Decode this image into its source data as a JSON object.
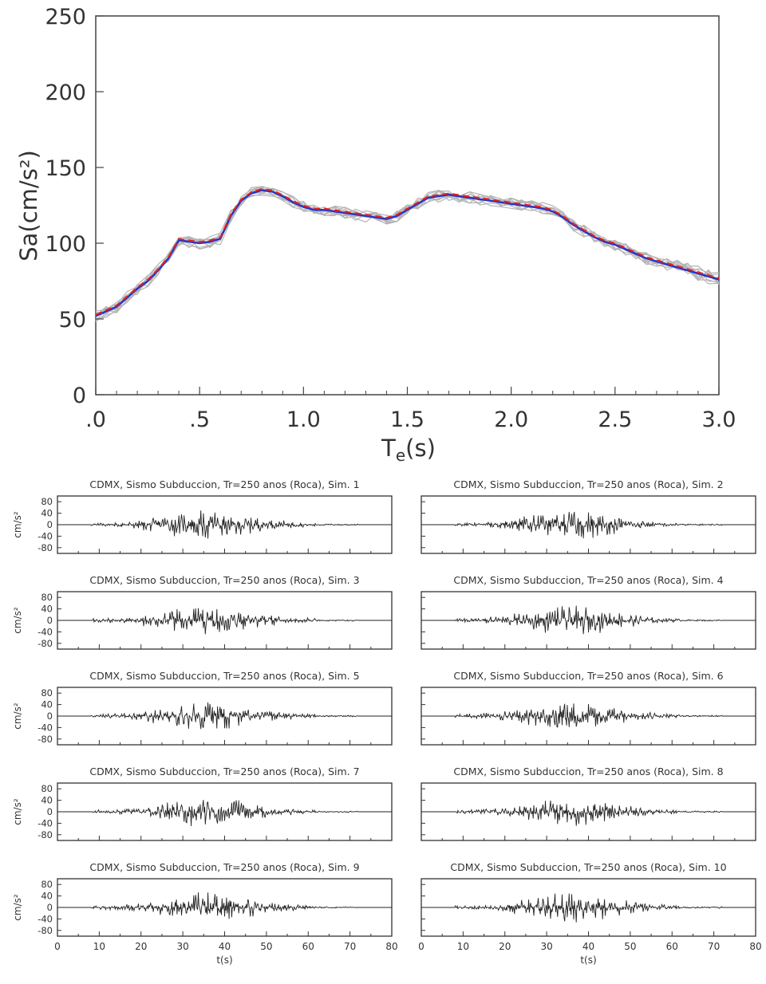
{
  "spectrum": {
    "chart_data": {
      "type": "line",
      "xlabel_main": "T",
      "xlabel_sub": "e",
      "xlabel_tail": "(s)",
      "ylabel": "Sa(cm/s²)",
      "xlim": [
        0,
        3
      ],
      "ylim": [
        0,
        250
      ],
      "x_ticks": [
        0,
        0.5,
        1.0,
        1.5,
        2.0,
        2.5,
        3.0
      ],
      "x_tick_labels": [
        ".0",
        ".5",
        "1.0",
        "1.5",
        "2.0",
        "2.5",
        "3.0"
      ],
      "y_ticks": [
        0,
        50,
        100,
        150,
        200,
        250
      ],
      "y_tick_labels": [
        "0",
        "50",
        "100",
        "150",
        "200",
        "250"
      ],
      "mean_curve": {
        "x": [
          0.0,
          0.05,
          0.1,
          0.15,
          0.2,
          0.25,
          0.3,
          0.35,
          0.4,
          0.45,
          0.5,
          0.55,
          0.6,
          0.65,
          0.7,
          0.75,
          0.8,
          0.85,
          0.9,
          0.95,
          1.0,
          1.05,
          1.1,
          1.15,
          1.2,
          1.25,
          1.3,
          1.35,
          1.4,
          1.45,
          1.5,
          1.55,
          1.6,
          1.65,
          1.7,
          1.75,
          1.8,
          1.85,
          1.9,
          1.95,
          2.0,
          2.05,
          2.1,
          2.15,
          2.2,
          2.25,
          2.3,
          2.35,
          2.4,
          2.45,
          2.5,
          2.55,
          2.6,
          2.65,
          2.7,
          2.75,
          2.8,
          2.85,
          2.9,
          2.95,
          3.0
        ],
        "y": [
          52,
          55,
          58,
          64,
          70,
          75,
          82,
          90,
          102,
          101,
          100,
          101,
          103,
          118,
          128,
          133,
          135,
          134,
          131,
          127,
          124,
          122,
          122,
          121,
          120,
          119,
          118,
          117,
          116,
          118,
          122,
          126,
          130,
          131,
          132,
          131,
          130,
          129,
          128,
          127,
          126,
          125,
          124,
          123,
          121,
          117,
          112,
          108,
          104,
          101,
          99,
          96,
          93,
          90,
          88,
          86,
          84,
          82,
          80,
          78,
          76
        ]
      },
      "colors": {
        "individual": "#b4b4b4",
        "mean": "#2233cc",
        "target": "#dd2222"
      }
    }
  },
  "panels": {
    "titles": [
      "CDMX, Sismo Subduccion, Tr=250 anos (Roca), Sim. 1",
      "CDMX, Sismo Subduccion, Tr=250 anos (Roca), Sim. 2",
      "CDMX, Sismo Subduccion, Tr=250 anos (Roca), Sim. 3",
      "CDMX, Sismo Subduccion, Tr=250 anos (Roca), Sim. 4",
      "CDMX, Sismo Subduccion, Tr=250 anos (Roca), Sim. 5",
      "CDMX, Sismo Subduccion, Tr=250 anos (Roca), Sim. 6",
      "CDMX, Sismo Subduccion, Tr=250 anos (Roca), Sim. 7",
      "CDMX, Sismo Subduccion, Tr=250 anos (Roca), Sim. 8",
      "CDMX, Sismo Subduccion, Tr=250 anos (Roca), Sim. 9",
      "CDMX, Sismo Subduccion, Tr=250 anos (Roca), Sim. 10"
    ],
    "ylabel": "cm/s²",
    "xlabel": "t(s)",
    "xlim": [
      0,
      80
    ],
    "ylim": [
      -100,
      100
    ],
    "y_tick_labels": [
      "80",
      "40",
      "0",
      "-40",
      "-80"
    ],
    "y_ticks": [
      80,
      40,
      0,
      -40,
      -80
    ],
    "x_tick_labels": [
      "0",
      "10",
      "20",
      "30",
      "40",
      "50",
      "60",
      "70",
      "80"
    ],
    "x_ticks": [
      0,
      10,
      20,
      30,
      40,
      50,
      60,
      70,
      80
    ]
  }
}
